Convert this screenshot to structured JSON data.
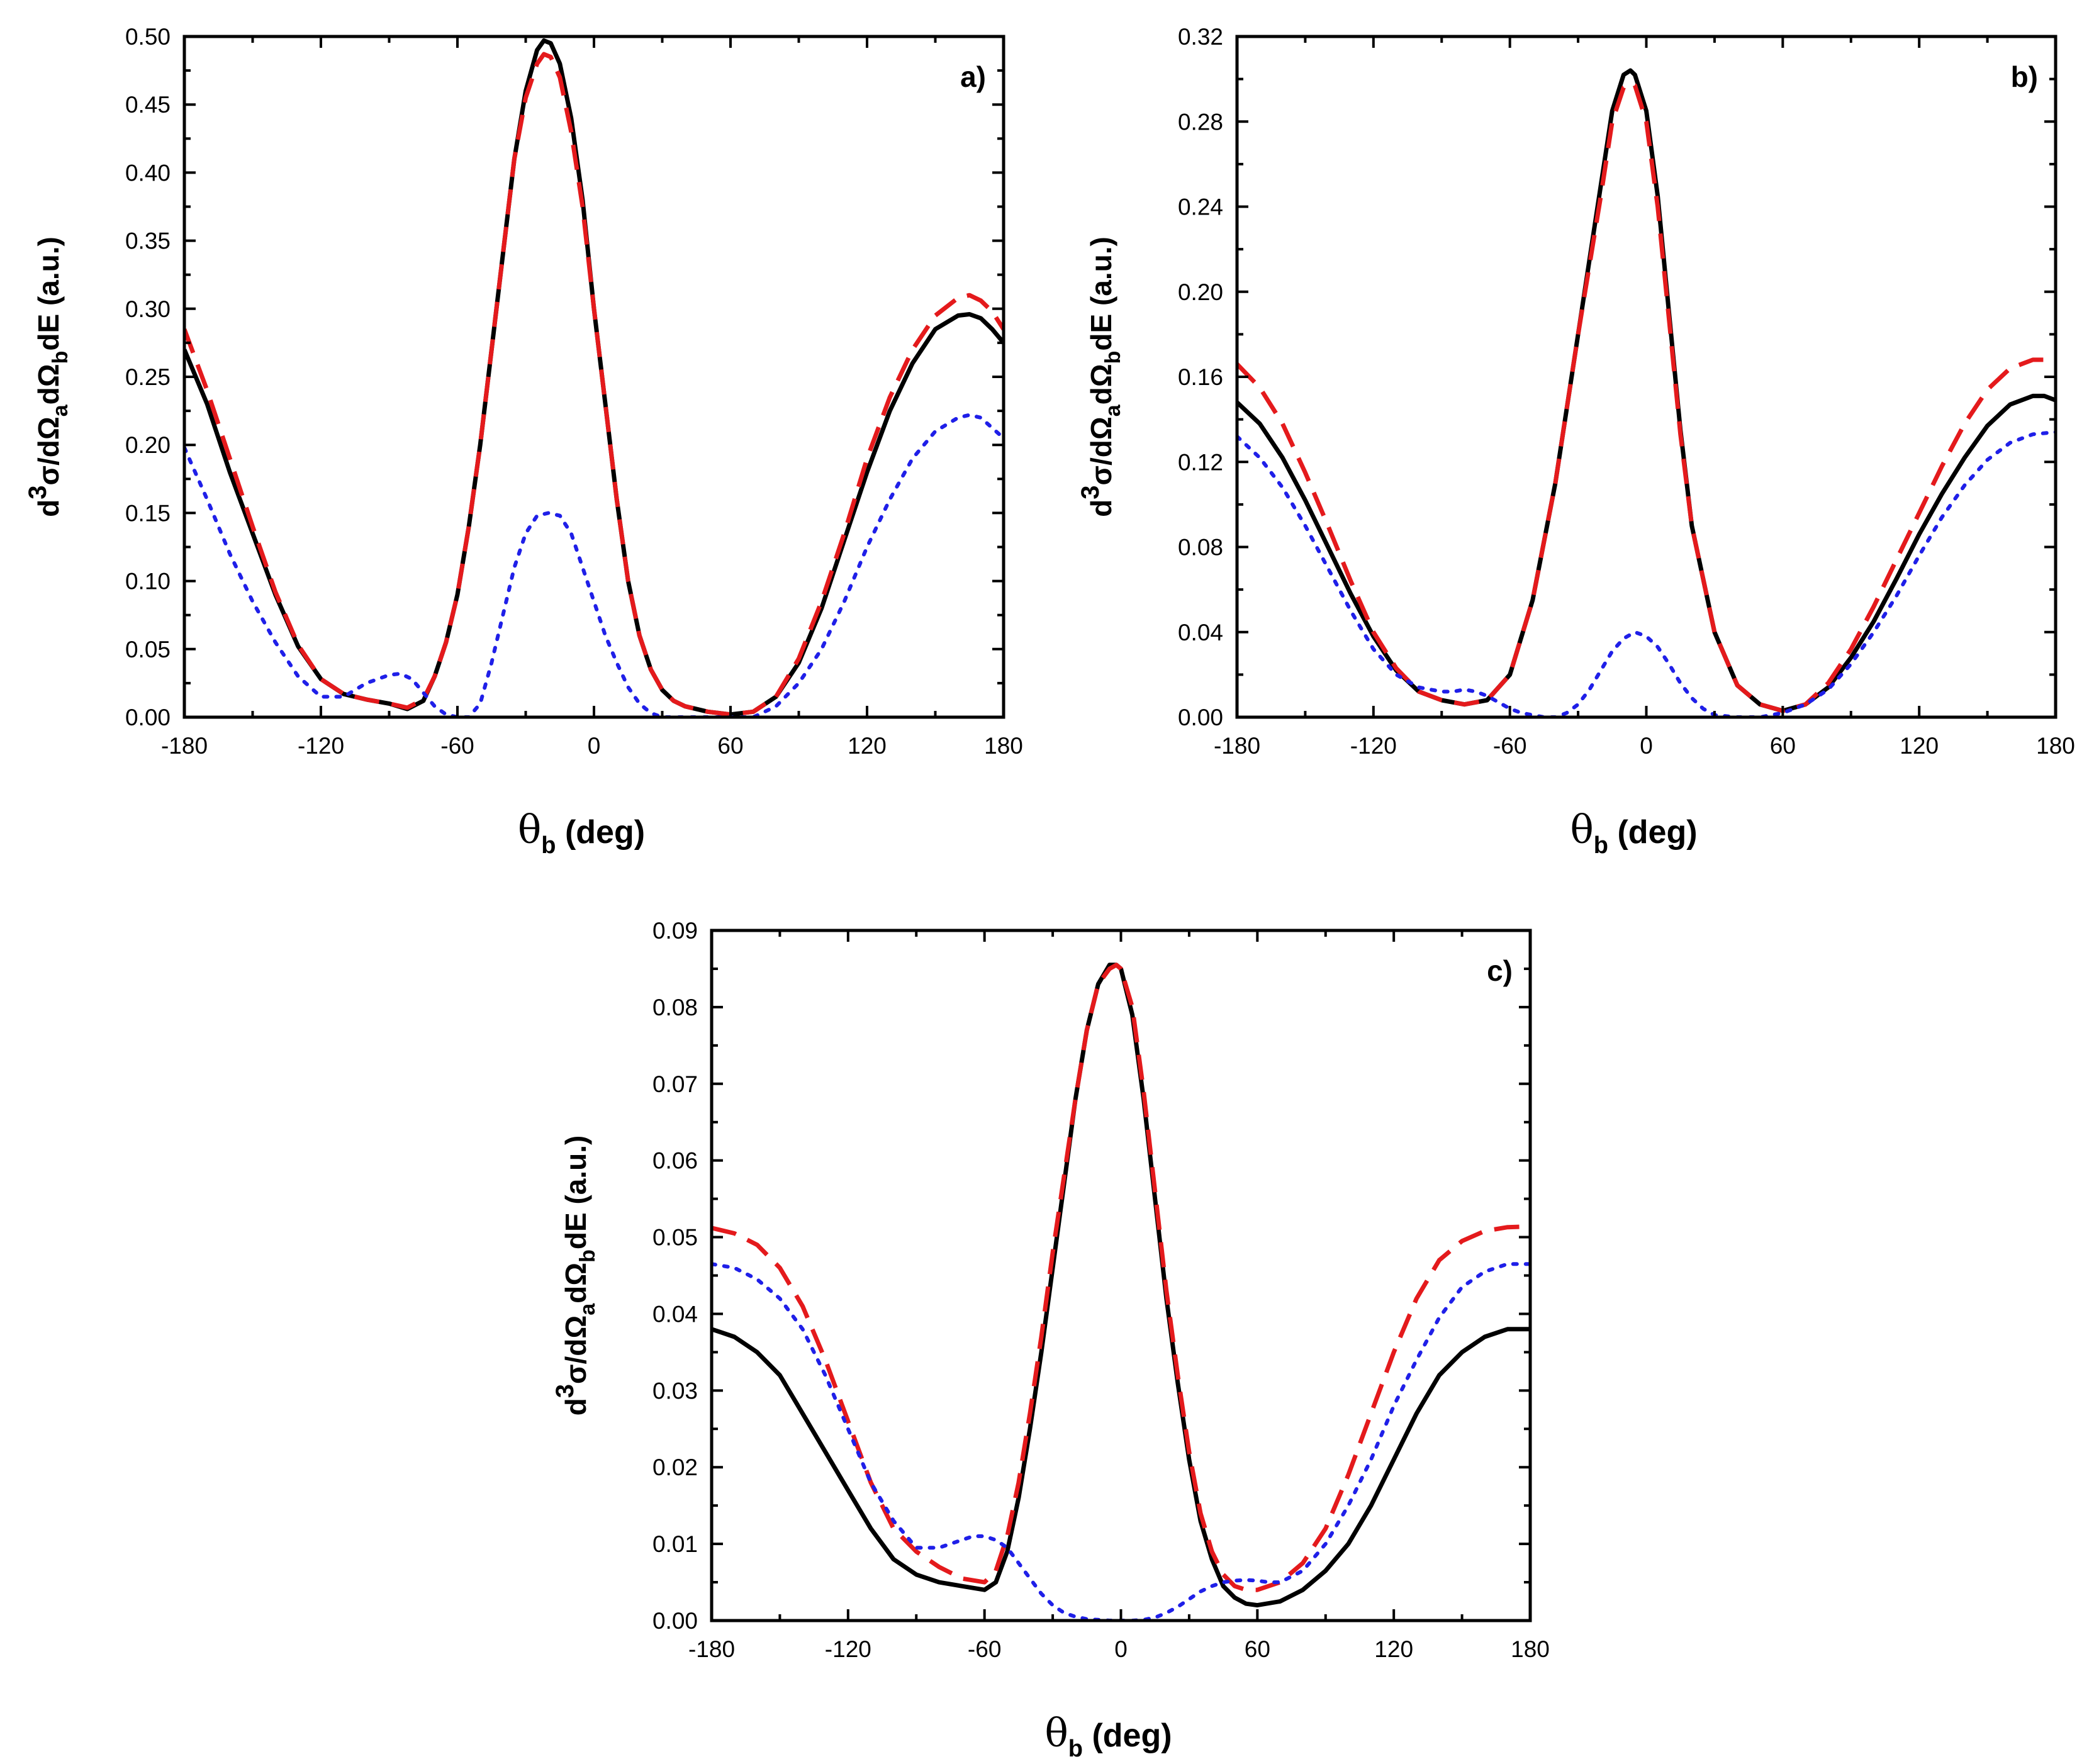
{
  "chart_data": [
    {
      "type": "line",
      "panel_label": "a)",
      "xlabel": {
        "symbol": "θ",
        "subscript": "b",
        "unit": "(deg)"
      },
      "ylabel": {
        "d": "d",
        "exp": "3",
        "mid": "σ/dΩ",
        "sub1": "a",
        "mid2": "dΩ",
        "sub2": "b",
        "end": "dE (a.u.)"
      },
      "xlim": [
        -180,
        180
      ],
      "ylim": [
        0,
        0.5
      ],
      "xticks": [
        "-180",
        "-120",
        "-60",
        "0",
        "60",
        "120",
        "180"
      ],
      "yticks": [
        "0.00",
        "0.05",
        "0.10",
        "0.15",
        "0.20",
        "0.25",
        "0.30",
        "0.35",
        "0.40",
        "0.45",
        "0.50"
      ],
      "series": [
        {
          "name": "solid",
          "color": "#000000",
          "style": "solid",
          "x": [
            -180,
            -170,
            -160,
            -150,
            -140,
            -130,
            -120,
            -110,
            -100,
            -90,
            -82,
            -75,
            -70,
            -65,
            -60,
            -55,
            -50,
            -45,
            -40,
            -35,
            -30,
            -25,
            -22,
            -19,
            -15,
            -10,
            -5,
            0,
            5,
            10,
            15,
            20,
            25,
            30,
            35,
            40,
            50,
            60,
            70,
            80,
            90,
            100,
            110,
            120,
            130,
            140,
            150,
            160,
            165,
            170,
            175,
            180
          ],
          "y": [
            0.27,
            0.23,
            0.18,
            0.135,
            0.09,
            0.052,
            0.028,
            0.017,
            0.013,
            0.01,
            0.006,
            0.012,
            0.03,
            0.055,
            0.09,
            0.14,
            0.2,
            0.27,
            0.34,
            0.41,
            0.46,
            0.49,
            0.497,
            0.495,
            0.48,
            0.44,
            0.38,
            0.3,
            0.23,
            0.16,
            0.1,
            0.06,
            0.035,
            0.02,
            0.012,
            0.008,
            0.004,
            0.002,
            0.004,
            0.015,
            0.04,
            0.08,
            0.13,
            0.18,
            0.225,
            0.26,
            0.285,
            0.295,
            0.296,
            0.293,
            0.285,
            0.275
          ]
        },
        {
          "name": "dashed",
          "color": "#e41a1c",
          "style": "dashed",
          "x": [
            -180,
            -170,
            -160,
            -150,
            -140,
            -130,
            -120,
            -110,
            -100,
            -90,
            -82,
            -75,
            -70,
            -65,
            -60,
            -55,
            -50,
            -45,
            -40,
            -35,
            -30,
            -25,
            -22,
            -19,
            -15,
            -10,
            -5,
            0,
            5,
            10,
            15,
            20,
            25,
            30,
            35,
            40,
            50,
            60,
            70,
            80,
            90,
            100,
            110,
            120,
            130,
            140,
            150,
            160,
            165,
            170,
            175,
            180
          ],
          "y": [
            0.285,
            0.24,
            0.19,
            0.14,
            0.092,
            0.053,
            0.028,
            0.017,
            0.013,
            0.01,
            0.007,
            0.013,
            0.03,
            0.055,
            0.09,
            0.14,
            0.2,
            0.27,
            0.34,
            0.41,
            0.455,
            0.48,
            0.487,
            0.485,
            0.47,
            0.43,
            0.375,
            0.3,
            0.23,
            0.16,
            0.1,
            0.06,
            0.035,
            0.02,
            0.012,
            0.008,
            0.004,
            0.002,
            0.004,
            0.015,
            0.043,
            0.085,
            0.135,
            0.19,
            0.235,
            0.27,
            0.295,
            0.308,
            0.31,
            0.306,
            0.298,
            0.285
          ]
        },
        {
          "name": "dotted",
          "color": "#1f1fe8",
          "style": "dotted",
          "x": [
            -180,
            -170,
            -160,
            -150,
            -140,
            -130,
            -120,
            -110,
            -100,
            -90,
            -85,
            -80,
            -75,
            -70,
            -65,
            -60,
            -55,
            -50,
            -45,
            -40,
            -35,
            -30,
            -25,
            -20,
            -15,
            -10,
            -5,
            0,
            5,
            10,
            15,
            20,
            25,
            30,
            35,
            40,
            50,
            60,
            70,
            80,
            90,
            100,
            110,
            120,
            130,
            140,
            150,
            160,
            165,
            170,
            180
          ],
          "y": [
            0.198,
            0.16,
            0.12,
            0.085,
            0.055,
            0.03,
            0.015,
            0.015,
            0.025,
            0.031,
            0.032,
            0.028,
            0.018,
            0.008,
            0.002,
            0.0,
            0.0,
            0.01,
            0.04,
            0.075,
            0.11,
            0.135,
            0.148,
            0.15,
            0.148,
            0.135,
            0.11,
            0.085,
            0.06,
            0.04,
            0.022,
            0.01,
            0.003,
            0.0,
            0.0,
            0.0,
            0.0,
            0.0,
            0.0,
            0.008,
            0.025,
            0.05,
            0.085,
            0.125,
            0.16,
            0.19,
            0.21,
            0.22,
            0.222,
            0.22,
            0.205
          ]
        }
      ]
    },
    {
      "type": "line",
      "panel_label": "b)",
      "xlabel": {
        "symbol": "θ",
        "subscript": "b",
        "unit": "(deg)"
      },
      "ylabel": {
        "d": "d",
        "exp": "3",
        "mid": "σ/dΩ",
        "sub1": "a",
        "mid2": "dΩ",
        "sub2": "b",
        "end": "dE (a.u.)"
      },
      "xlim": [
        -180,
        180
      ],
      "ylim": [
        0,
        0.32
      ],
      "xticks": [
        "-180",
        "-120",
        "-60",
        "0",
        "60",
        "120",
        "180"
      ],
      "yticks": [
        "0.00",
        "0.04",
        "0.08",
        "0.12",
        "0.16",
        "0.20",
        "0.24",
        "0.28",
        "0.32"
      ],
      "series": [
        {
          "name": "solid",
          "color": "#000000",
          "style": "solid",
          "x": [
            -180,
            -170,
            -160,
            -150,
            -140,
            -130,
            -120,
            -110,
            -100,
            -90,
            -80,
            -70,
            -60,
            -50,
            -40,
            -30,
            -20,
            -15,
            -10,
            -7,
            -5,
            0,
            5,
            10,
            15,
            20,
            30,
            40,
            50,
            60,
            70,
            80,
            90,
            100,
            110,
            120,
            130,
            140,
            150,
            160,
            170,
            175,
            180
          ],
          "y": [
            0.148,
            0.138,
            0.122,
            0.102,
            0.08,
            0.058,
            0.038,
            0.022,
            0.012,
            0.008,
            0.006,
            0.008,
            0.02,
            0.055,
            0.11,
            0.18,
            0.25,
            0.285,
            0.302,
            0.304,
            0.302,
            0.285,
            0.245,
            0.19,
            0.135,
            0.09,
            0.04,
            0.015,
            0.006,
            0.003,
            0.006,
            0.014,
            0.028,
            0.045,
            0.065,
            0.086,
            0.105,
            0.122,
            0.137,
            0.147,
            0.151,
            0.151,
            0.149
          ]
        },
        {
          "name": "dashed",
          "color": "#e41a1c",
          "style": "dashed",
          "x": [
            -180,
            -170,
            -160,
            -150,
            -140,
            -130,
            -120,
            -110,
            -100,
            -90,
            -80,
            -70,
            -60,
            -50,
            -40,
            -30,
            -20,
            -15,
            -10,
            -7,
            -5,
            0,
            5,
            10,
            15,
            20,
            30,
            40,
            50,
            60,
            70,
            80,
            90,
            100,
            110,
            120,
            130,
            140,
            150,
            160,
            170,
            175,
            180
          ],
          "y": [
            0.166,
            0.155,
            0.138,
            0.115,
            0.09,
            0.064,
            0.04,
            0.023,
            0.012,
            0.008,
            0.006,
            0.008,
            0.02,
            0.055,
            0.11,
            0.18,
            0.245,
            0.28,
            0.296,
            0.298,
            0.297,
            0.28,
            0.24,
            0.187,
            0.133,
            0.09,
            0.04,
            0.015,
            0.006,
            0.003,
            0.006,
            0.016,
            0.032,
            0.052,
            0.074,
            0.096,
            0.118,
            0.138,
            0.154,
            0.164,
            0.168,
            0.168,
            0.166
          ]
        },
        {
          "name": "dotted",
          "color": "#1f1fe8",
          "style": "dotted",
          "x": [
            -180,
            -170,
            -160,
            -150,
            -140,
            -130,
            -120,
            -110,
            -100,
            -90,
            -85,
            -80,
            -75,
            -70,
            -65,
            -60,
            -55,
            -50,
            -45,
            -40,
            -35,
            -30,
            -25,
            -20,
            -15,
            -10,
            -5,
            0,
            5,
            10,
            15,
            20,
            25,
            30,
            40,
            50,
            60,
            70,
            80,
            90,
            100,
            110,
            120,
            130,
            140,
            150,
            160,
            170,
            180
          ],
          "y": [
            0.132,
            0.122,
            0.108,
            0.09,
            0.07,
            0.05,
            0.032,
            0.02,
            0.014,
            0.012,
            0.012,
            0.013,
            0.012,
            0.01,
            0.007,
            0.004,
            0.002,
            0.001,
            0.0,
            0.0,
            0.002,
            0.006,
            0.013,
            0.022,
            0.031,
            0.037,
            0.04,
            0.038,
            0.033,
            0.025,
            0.016,
            0.009,
            0.004,
            0.001,
            0.0,
            0.0,
            0.002,
            0.006,
            0.013,
            0.025,
            0.04,
            0.057,
            0.076,
            0.094,
            0.109,
            0.121,
            0.129,
            0.133,
            0.134
          ]
        }
      ]
    },
    {
      "type": "line",
      "panel_label": "c)",
      "xlabel": {
        "symbol": "θ",
        "subscript": "b",
        "unit": "(deg)"
      },
      "ylabel": {
        "d": "d",
        "exp": "3",
        "mid": "σ/dΩ",
        "sub1": "a",
        "mid2": "dΩ",
        "sub2": "b",
        "end": "dE (a.u.)"
      },
      "xlim": [
        -180,
        180
      ],
      "ylim": [
        0,
        0.09
      ],
      "xticks": [
        "-180",
        "-120",
        "-60",
        "0",
        "60",
        "120",
        "180"
      ],
      "yticks": [
        "0.00",
        "0.01",
        "0.02",
        "0.03",
        "0.04",
        "0.05",
        "0.06",
        "0.07",
        "0.08",
        "0.09"
      ],
      "series": [
        {
          "name": "solid",
          "color": "#000000",
          "style": "solid",
          "x": [
            -180,
            -170,
            -160,
            -150,
            -140,
            -130,
            -120,
            -110,
            -100,
            -90,
            -80,
            -70,
            -60,
            -55,
            -50,
            -45,
            -40,
            -35,
            -30,
            -25,
            -20,
            -15,
            -10,
            -5,
            -2,
            0,
            5,
            10,
            15,
            20,
            25,
            30,
            35,
            40,
            45,
            50,
            55,
            60,
            70,
            80,
            90,
            100,
            110,
            120,
            130,
            140,
            150,
            160,
            170,
            180
          ],
          "y": [
            0.038,
            0.037,
            0.035,
            0.032,
            0.027,
            0.022,
            0.017,
            0.012,
            0.008,
            0.006,
            0.005,
            0.0045,
            0.004,
            0.005,
            0.009,
            0.016,
            0.025,
            0.035,
            0.046,
            0.057,
            0.068,
            0.077,
            0.083,
            0.0855,
            0.0855,
            0.085,
            0.079,
            0.068,
            0.055,
            0.042,
            0.031,
            0.021,
            0.013,
            0.008,
            0.0045,
            0.003,
            0.0022,
            0.002,
            0.0025,
            0.004,
            0.0065,
            0.01,
            0.015,
            0.021,
            0.027,
            0.032,
            0.035,
            0.037,
            0.038,
            0.038
          ]
        },
        {
          "name": "dashed",
          "color": "#e41a1c",
          "style": "dashed",
          "x": [
            -180,
            -170,
            -160,
            -150,
            -140,
            -130,
            -120,
            -110,
            -100,
            -90,
            -80,
            -70,
            -60,
            -55,
            -50,
            -45,
            -40,
            -35,
            -30,
            -25,
            -20,
            -15,
            -10,
            -5,
            -2,
            0,
            5,
            10,
            15,
            20,
            25,
            30,
            35,
            40,
            45,
            50,
            55,
            60,
            70,
            80,
            90,
            100,
            110,
            120,
            130,
            140,
            150,
            160,
            170,
            180
          ],
          "y": [
            0.0512,
            0.0505,
            0.049,
            0.046,
            0.041,
            0.034,
            0.026,
            0.018,
            0.012,
            0.009,
            0.007,
            0.0055,
            0.005,
            0.0065,
            0.011,
            0.018,
            0.027,
            0.037,
            0.048,
            0.058,
            0.068,
            0.077,
            0.083,
            0.085,
            0.0855,
            0.085,
            0.08,
            0.069,
            0.056,
            0.043,
            0.032,
            0.022,
            0.014,
            0.009,
            0.006,
            0.0045,
            0.004,
            0.004,
            0.005,
            0.0075,
            0.012,
            0.019,
            0.027,
            0.035,
            0.042,
            0.047,
            0.0495,
            0.0508,
            0.0513,
            0.0514
          ]
        },
        {
          "name": "dotted",
          "color": "#1f1fe8",
          "style": "dotted",
          "x": [
            -180,
            -170,
            -160,
            -150,
            -140,
            -130,
            -120,
            -110,
            -100,
            -90,
            -80,
            -70,
            -65,
            -60,
            -55,
            -50,
            -45,
            -40,
            -35,
            -30,
            -25,
            -20,
            -15,
            -10,
            -5,
            0,
            5,
            10,
            15,
            20,
            25,
            30,
            35,
            40,
            45,
            50,
            55,
            60,
            65,
            70,
            80,
            90,
            100,
            110,
            120,
            130,
            140,
            150,
            160,
            170,
            180
          ],
          "y": [
            0.0465,
            0.046,
            0.0445,
            0.042,
            0.038,
            0.032,
            0.025,
            0.018,
            0.013,
            0.0095,
            0.0095,
            0.0105,
            0.011,
            0.011,
            0.0105,
            0.0095,
            0.0075,
            0.0055,
            0.0035,
            0.002,
            0.001,
            0.0005,
            0.0002,
            0.0001,
            0.0,
            0.0,
            0.0,
            0.0001,
            0.0004,
            0.001,
            0.0018,
            0.0028,
            0.0038,
            0.0045,
            0.005,
            0.0052,
            0.0053,
            0.0052,
            0.005,
            0.005,
            0.0065,
            0.01,
            0.015,
            0.021,
            0.028,
            0.034,
            0.0395,
            0.0435,
            0.0455,
            0.0465,
            0.0465
          ]
        }
      ]
    }
  ]
}
